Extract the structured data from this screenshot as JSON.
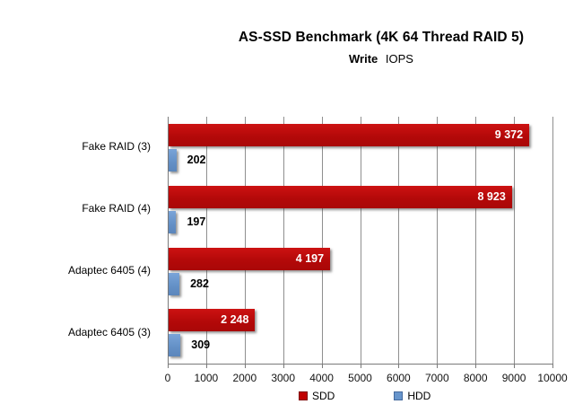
{
  "chart_data": {
    "type": "bar",
    "orientation": "horizontal",
    "title": "AS-SSD Benchmark (4K 64 Thread RAID 5)",
    "subtitle_bold": "Write",
    "subtitle_rest": "IOPS",
    "categories": [
      "Fake RAID (3)",
      "Fake RAID (4)",
      "Adaptec 6405 (4)",
      "Adaptec 6405 (3)"
    ],
    "series": [
      {
        "name": "SDD",
        "color": "#be0d0d",
        "values": [
          9372,
          8923,
          4197,
          2248
        ],
        "labels": [
          "9 372",
          "8 923",
          "4 197",
          "2 248"
        ]
      },
      {
        "name": "HDD",
        "color": "#6795cc",
        "values": [
          202,
          197,
          282,
          309
        ],
        "labels": [
          "202",
          "197",
          "282",
          "309"
        ]
      }
    ],
    "xlim": [
      0,
      10000
    ],
    "xticks": [
      0,
      1000,
      2000,
      3000,
      4000,
      5000,
      6000,
      7000,
      8000,
      9000,
      10000
    ],
    "grid": true,
    "legend_position": "bottom"
  }
}
